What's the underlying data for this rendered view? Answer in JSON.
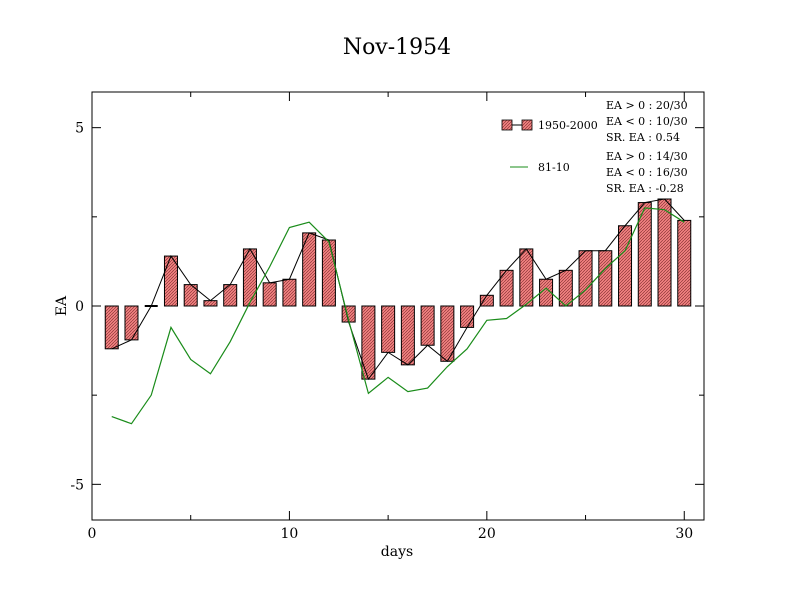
{
  "chart_data": {
    "type": "bar",
    "title": "Nov-1954",
    "xlabel": "days",
    "ylabel": "EA",
    "xlim": [
      0,
      31
    ],
    "ylim": [
      -6,
      6
    ],
    "x_ticks": [
      0,
      10,
      20,
      30
    ],
    "y_ticks": [
      5,
      0,
      -5
    ],
    "x_tick_labels": [
      "0",
      "10",
      "20",
      "30"
    ],
    "y_tick_labels": [
      "5",
      "0",
      "-5"
    ],
    "x": [
      1,
      2,
      3,
      4,
      5,
      6,
      7,
      8,
      9,
      10,
      11,
      12,
      13,
      14,
      15,
      16,
      17,
      18,
      19,
      20,
      21,
      22,
      23,
      24,
      25,
      26,
      27,
      28,
      29,
      30
    ],
    "series": [
      {
        "name": "1950-2000",
        "kind": "bar",
        "color": "#f08080",
        "values": [
          -1.2,
          -0.95,
          0.0,
          1.4,
          0.6,
          0.15,
          0.6,
          1.6,
          0.65,
          0.75,
          2.05,
          1.85,
          -0.45,
          -2.05,
          -1.3,
          -1.65,
          -1.1,
          -1.55,
          -0.6,
          0.3,
          1.0,
          1.6,
          0.75,
          1.0,
          1.55,
          1.55,
          2.25,
          2.9,
          3.0,
          2.4
        ]
      },
      {
        "name": "81-10",
        "kind": "line",
        "color": "#1a8c1a",
        "values": [
          -3.1,
          -3.3,
          -2.5,
          -0.6,
          -1.5,
          -1.9,
          -1.0,
          0.1,
          1.1,
          2.2,
          2.35,
          1.8,
          -0.4,
          -2.45,
          -2.0,
          -2.4,
          -2.3,
          -1.7,
          -1.2,
          -0.4,
          -0.35,
          0.05,
          0.5,
          0.0,
          0.45,
          1.05,
          1.55,
          2.75,
          2.7,
          2.35
        ]
      }
    ],
    "legend": {
      "position": "top-right",
      "entries": [
        {
          "label": "1950-2000",
          "stats": [
            "EA > 0 : 20/30",
            "EA < 0 : 10/30",
            "SR. EA :  0.54"
          ]
        },
        {
          "label": "81-10",
          "stats": [
            "EA > 0 : 14/30",
            "EA < 0 : 16/30",
            "SR. EA : -0.28"
          ]
        }
      ]
    }
  }
}
